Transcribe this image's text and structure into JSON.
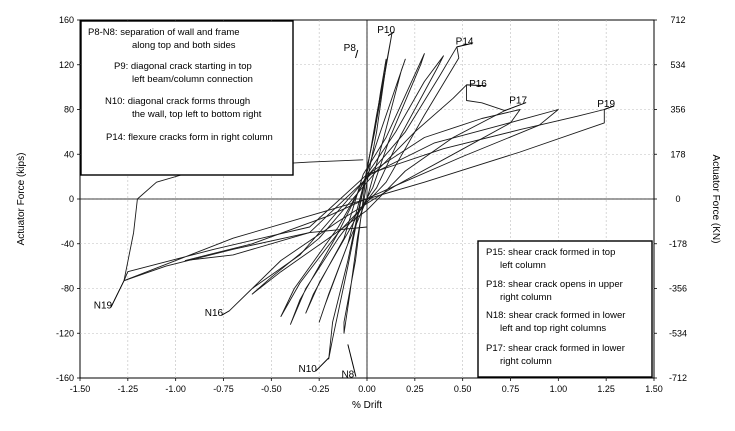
{
  "chart_data": {
    "type": "line",
    "xlabel": "% Drift",
    "ylabel": "Actuator Force (kips)",
    "y2label": "Actuator Force (KN)",
    "xlim": [
      -1.5,
      1.5
    ],
    "ylim": [
      -160,
      160
    ],
    "xticks": [
      "-1.50",
      "-1.25",
      "-1.00",
      "-0.75",
      "-0.50",
      "-0.25",
      "0.00",
      "0.25",
      "0.50",
      "0.75",
      "1.00",
      "1.25",
      "1.50"
    ],
    "yticks": [
      "160",
      "120",
      "80",
      "40",
      "0",
      "-40",
      "-80",
      "-120",
      "-160"
    ],
    "y2ticks": [
      "712",
      "534",
      "356",
      "178",
      "0",
      "-178",
      "-356",
      "-534",
      "-712"
    ],
    "grid": true,
    "annotations": [
      {
        "label": "P8",
        "x": -0.06,
        "y": 126,
        "text_x": -0.09,
        "text_y": 135
      },
      {
        "label": "P10",
        "x": 0.11,
        "y": 146,
        "text_x": 0.1,
        "text_y": 151
      },
      {
        "label": "P14",
        "x": 0.47,
        "y": 136,
        "text_x": 0.51,
        "text_y": 141
      },
      {
        "label": "P16",
        "x": 0.52,
        "y": 102,
        "text_x": 0.58,
        "text_y": 103
      },
      {
        "label": "P17",
        "x": 0.72,
        "y": 79,
        "text_x": 0.79,
        "text_y": 88
      },
      {
        "label": "P19",
        "x": 1.24,
        "y": 80,
        "text_x": 1.25,
        "text_y": 85
      },
      {
        "label": "N19",
        "x": -1.27,
        "y": -73,
        "text_x": -1.38,
        "text_y": -95
      },
      {
        "label": "N16",
        "x": -0.72,
        "y": -100,
        "text_x": -0.8,
        "text_y": -102
      },
      {
        "label": "N10",
        "x": -0.2,
        "y": -142,
        "text_x": -0.31,
        "text_y": -152
      },
      {
        "label": "N8",
        "x": -0.1,
        "y": -130,
        "text_x": -0.1,
        "text_y": -157
      }
    ],
    "notes_left": [
      {
        "line1": "P8-N8: separation of wall and frame",
        "line2": "along top and both sides"
      },
      {
        "line1": "P9: diagonal crack starting in top",
        "line2": "left beam/column connection"
      },
      {
        "line1": "N10: diagonal crack forms through",
        "line2": "the wall, top left to bottom right"
      },
      {
        "line1": "P14: flexure cracks form in right column",
        "line2": ""
      }
    ],
    "notes_right": [
      {
        "line1": "P15: shear crack formed in top",
        "line2": "left column"
      },
      {
        "line1": "P18: shear crack opens in upper",
        "line2": "right column"
      },
      {
        "line1": "N18: shear crack formed in lower",
        "line2": "left and top right columns"
      },
      {
        "line1": "P17: shear crack formed in lower",
        "line2": "right column"
      }
    ],
    "series": [
      {
        "points": [
          [
            0,
            28
          ],
          [
            0.04,
            60
          ],
          [
            0.07,
            95
          ],
          [
            0.1,
            125
          ],
          [
            0.1,
            120
          ],
          [
            0.05,
            60
          ],
          [
            0,
            15
          ],
          [
            -0.05,
            -35
          ],
          [
            -0.09,
            -85
          ],
          [
            -0.12,
            -120
          ],
          [
            -0.12,
            -110
          ],
          [
            -0.06,
            -55
          ],
          [
            -0.02,
            0
          ],
          [
            0,
            28
          ]
        ]
      },
      {
        "points": [
          [
            0,
            25
          ],
          [
            0.05,
            75
          ],
          [
            0.1,
            120
          ],
          [
            0.13,
            148
          ],
          [
            0.12,
            138
          ],
          [
            0.05,
            70
          ],
          [
            -0.02,
            10
          ],
          [
            -0.1,
            -55
          ],
          [
            -0.18,
            -110
          ],
          [
            -0.2,
            -143
          ],
          [
            -0.18,
            -125
          ],
          [
            -0.1,
            -60
          ],
          [
            -0.03,
            0
          ],
          [
            0,
            25
          ]
        ]
      },
      {
        "points": [
          [
            0,
            24
          ],
          [
            0.07,
            60
          ],
          [
            0.15,
            100
          ],
          [
            0.2,
            125
          ],
          [
            0.18,
            115
          ],
          [
            0.08,
            50
          ],
          [
            0,
            0
          ],
          [
            -0.1,
            -40
          ],
          [
            -0.2,
            -85
          ],
          [
            -0.25,
            -110
          ],
          [
            -0.22,
            -95
          ],
          [
            -0.1,
            -40
          ],
          [
            0,
            24
          ]
        ]
      },
      {
        "points": [
          [
            -0.02,
            22
          ],
          [
            0.1,
            55
          ],
          [
            0.22,
            100
          ],
          [
            0.3,
            130
          ],
          [
            0.28,
            120
          ],
          [
            0.12,
            55
          ],
          [
            0.03,
            10
          ],
          [
            -0.1,
            -30
          ],
          [
            -0.25,
            -75
          ],
          [
            -0.32,
            -102
          ],
          [
            -0.28,
            -85
          ],
          [
            -0.12,
            -35
          ],
          [
            -0.02,
            22
          ]
        ]
      },
      {
        "points": [
          [
            0,
            22
          ],
          [
            0.15,
            60
          ],
          [
            0.3,
            105
          ],
          [
            0.4,
            128
          ],
          [
            0.37,
            118
          ],
          [
            0.18,
            58
          ],
          [
            0.05,
            10
          ],
          [
            -0.15,
            -35
          ],
          [
            -0.32,
            -80
          ],
          [
            -0.4,
            -112
          ],
          [
            -0.35,
            -90
          ],
          [
            -0.15,
            -30
          ],
          [
            0,
            22
          ]
        ]
      },
      {
        "points": [
          [
            0,
            20
          ],
          [
            0.2,
            60
          ],
          [
            0.38,
            110
          ],
          [
            0.47,
            136
          ],
          [
            0.48,
            126
          ],
          [
            0.3,
            75
          ],
          [
            0.1,
            15
          ],
          [
            -0.15,
            -30
          ],
          [
            -0.35,
            -75
          ],
          [
            -0.45,
            -105
          ],
          [
            -0.38,
            -80
          ],
          [
            -0.15,
            -25
          ],
          [
            0,
            20
          ]
        ]
      },
      {
        "points": [
          [
            0.05,
            25
          ],
          [
            0.25,
            60
          ],
          [
            0.45,
            90
          ],
          [
            0.52,
            102
          ],
          [
            0.52,
            88
          ],
          [
            0.6,
            86
          ],
          [
            0.72,
            79
          ],
          [
            0.45,
            55
          ],
          [
            0.2,
            25
          ],
          [
            0,
            -10
          ],
          [
            -0.2,
            -35
          ],
          [
            -0.45,
            -65
          ],
          [
            -0.6,
            -85
          ],
          [
            -0.5,
            -70
          ],
          [
            -0.25,
            -35
          ],
          [
            0.05,
            25
          ]
        ]
      },
      {
        "points": [
          [
            0.03,
            25
          ],
          [
            0.3,
            55
          ],
          [
            0.6,
            72
          ],
          [
            0.8,
            80
          ],
          [
            0.75,
            68
          ],
          [
            0.45,
            40
          ],
          [
            0.15,
            12
          ],
          [
            -0.15,
            -20
          ],
          [
            -0.45,
            -55
          ],
          [
            -0.72,
            -100
          ],
          [
            -0.6,
            -80
          ],
          [
            -0.35,
            -50
          ],
          [
            0.03,
            25
          ]
        ]
      },
      {
        "points": [
          [
            0.02,
            22
          ],
          [
            0.35,
            50
          ],
          [
            0.7,
            66
          ],
          [
            1.0,
            80
          ],
          [
            0.9,
            66
          ],
          [
            0.5,
            38
          ],
          [
            0.15,
            12
          ],
          [
            -0.2,
            -15
          ],
          [
            -0.6,
            -40
          ],
          [
            -0.95,
            -55
          ],
          [
            -0.7,
            -50
          ],
          [
            -0.3,
            -30
          ],
          [
            0.02,
            22
          ]
        ]
      },
      {
        "points": [
          [
            0,
            22
          ],
          [
            0.4,
            45
          ],
          [
            0.8,
            62
          ],
          [
            1.1,
            74
          ],
          [
            1.24,
            80
          ],
          [
            1.24,
            68
          ],
          [
            0.8,
            42
          ],
          [
            0.3,
            15
          ],
          [
            -0.2,
            -10
          ],
          [
            -0.7,
            -35
          ],
          [
            -1.27,
            -73
          ],
          [
            -1.25,
            -65
          ],
          [
            -0.8,
            -45
          ],
          [
            -0.3,
            -25
          ],
          [
            0,
            22
          ]
        ]
      },
      {
        "points": [
          [
            -0.02,
            35
          ],
          [
            -0.3,
            33
          ],
          [
            -0.6,
            30
          ],
          [
            -0.9,
            25
          ],
          [
            -1.1,
            15
          ],
          [
            -1.2,
            0
          ],
          [
            -1.22,
            -30
          ],
          [
            -1.27,
            -73
          ],
          [
            -1.05,
            -60
          ],
          [
            -0.7,
            -45
          ],
          [
            -0.3,
            -30
          ],
          [
            0,
            -25
          ]
        ]
      }
    ]
  }
}
